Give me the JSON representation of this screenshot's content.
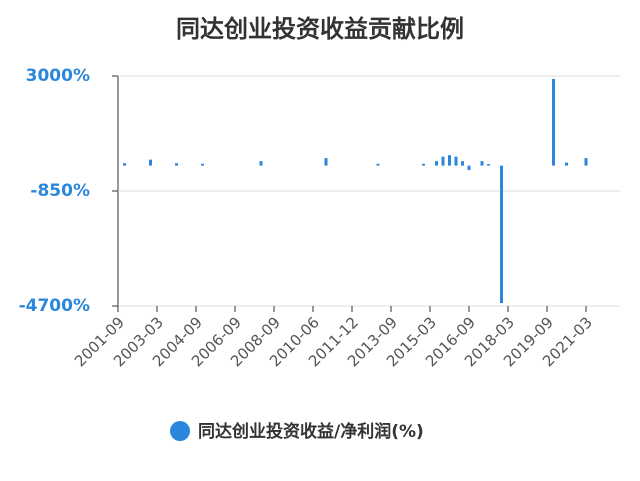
{
  "chart_data": {
    "type": "bar",
    "title": "同达创业投资收益贡献比例",
    "categories": [
      "2001-09",
      null,
      null,
      null,
      null,
      null,
      "2003-03",
      null,
      null,
      null,
      null,
      null,
      "2004-09",
      null,
      null,
      null,
      null,
      null,
      "2006-09",
      null,
      null,
      null,
      null,
      null,
      "2008-09",
      null,
      null,
      null,
      null,
      null,
      "2010-06",
      null,
      null,
      null,
      null,
      null,
      "2011-12",
      null,
      null,
      null,
      null,
      null,
      "2013-09",
      null,
      null,
      null,
      null,
      null,
      "2015-03",
      null,
      null,
      null,
      null,
      null,
      "2016-09",
      null,
      null,
      null,
      null,
      null,
      "2018-03",
      null,
      null,
      null,
      null,
      null,
      "2019-09",
      null,
      null,
      null,
      null,
      null,
      "2021-03",
      null,
      null,
      null,
      null,
      null
    ],
    "series": [
      {
        "name": "同达创业投资收益/净利润(%)",
        "color": "#2b87dc",
        "values": [
          null,
          80,
          null,
          null,
          null,
          200,
          null,
          null,
          null,
          80,
          null,
          null,
          null,
          60,
          null,
          null,
          null,
          null,
          null,
          null,
          null,
          null,
          150,
          null,
          null,
          null,
          null,
          null,
          null,
          null,
          null,
          null,
          250,
          null,
          null,
          null,
          null,
          null,
          null,
          null,
          60,
          null,
          null,
          null,
          null,
          null,
          null,
          60,
          null,
          150,
          300,
          350,
          300,
          150,
          -150,
          null,
          150,
          50,
          null,
          -4600,
          null,
          null,
          null,
          null,
          null,
          null,
          null,
          2900,
          null,
          100,
          null,
          null,
          250,
          null,
          null,
          null,
          null,
          null
        ]
      }
    ],
    "ylim": [
      -4700,
      3000
    ],
    "yticks": [
      {
        "value": -4700,
        "label": "-4700%"
      },
      {
        "value": -850,
        "label": "-850%"
      },
      {
        "value": 3000,
        "label": "3000%"
      }
    ],
    "grid": true
  }
}
